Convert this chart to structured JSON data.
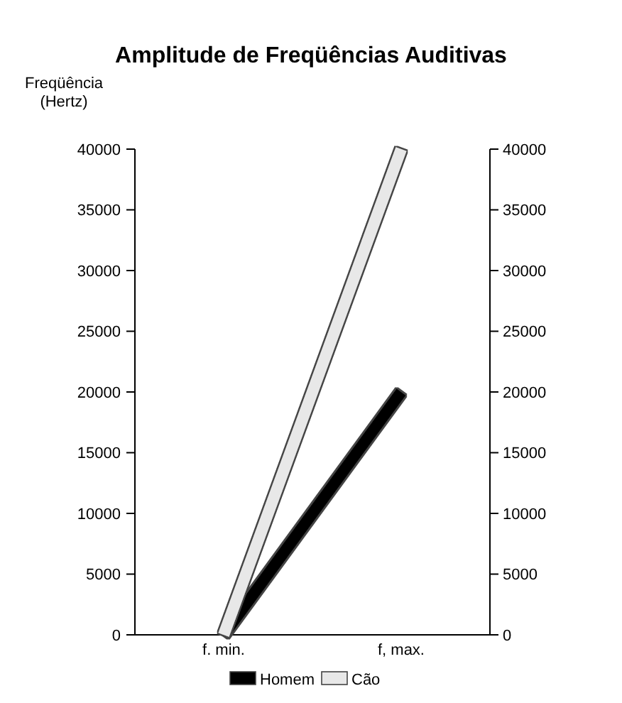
{
  "chart_data": {
    "type": "line",
    "title": "Amplitude de Freqüências Auditivas",
    "ylabel": "Freqüência (Hertz)",
    "categories": [
      "f. min.",
      "f, max."
    ],
    "series": [
      {
        "name": "Homem",
        "color": "#000000",
        "values": [
          0,
          20000
        ]
      },
      {
        "name": "Cão",
        "color": "#e8e8e8",
        "values": [
          0,
          40000
        ]
      }
    ],
    "ylim": [
      0,
      40000
    ],
    "yticks": [
      0,
      5000,
      10000,
      15000,
      20000,
      25000,
      30000,
      35000,
      40000
    ],
    "y2lim": [
      0,
      40000
    ],
    "y2ticks": [
      0,
      5000,
      10000,
      15000,
      20000,
      25000,
      30000,
      35000,
      40000
    ],
    "grid": false,
    "legend": "bottom",
    "marker": "none",
    "line_style": "solid"
  }
}
